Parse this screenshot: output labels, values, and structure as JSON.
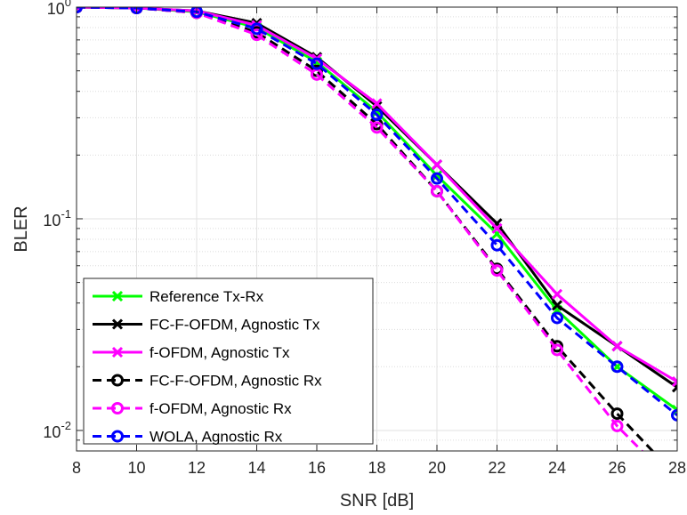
{
  "chart_data": {
    "type": "line",
    "xlabel": "SNR [dB]",
    "ylabel": "BLER",
    "xlim": [
      8,
      28
    ],
    "ylim": [
      0.008,
      1.0
    ],
    "yscale": "log",
    "grid": true,
    "legend_position": "bottom-left",
    "x_ticks": [
      8,
      10,
      12,
      14,
      16,
      18,
      20,
      22,
      24,
      26,
      28
    ],
    "x_tick_labels": [
      "8",
      "10",
      "12",
      "14",
      "16",
      "18",
      "20",
      "22",
      "24",
      "26",
      "28"
    ],
    "y_ticks": [
      {
        "value": 1,
        "base": "10",
        "exp": "0"
      },
      {
        "value": 0.1,
        "base": "10",
        "exp": "-1"
      },
      {
        "value": 0.01,
        "base": "10",
        "exp": "-2"
      }
    ],
    "series": [
      {
        "name": "Reference Tx-Rx",
        "color": "#00ff00",
        "dash": "solid",
        "marker": "x",
        "x": [
          8,
          10,
          12,
          14,
          16,
          18,
          20,
          22,
          24,
          26,
          28
        ],
        "values": [
          1.0,
          0.99,
          0.95,
          0.8,
          0.55,
          0.32,
          0.16,
          0.085,
          0.037,
          0.02,
          0.0125
        ]
      },
      {
        "name": "FC-F-OFDM, Agnostic Tx",
        "color": "#000000",
        "dash": "solid",
        "marker": "x",
        "x": [
          8,
          10,
          12,
          14,
          16,
          18,
          20,
          22,
          24,
          26,
          28
        ],
        "values": [
          1.0,
          0.99,
          0.96,
          0.84,
          0.58,
          0.34,
          0.18,
          0.095,
          0.039,
          0.025,
          0.016
        ]
      },
      {
        "name": "f-OFDM, Agnostic Tx",
        "color": "#ff00ff",
        "dash": "solid",
        "marker": "x",
        "x": [
          8,
          10,
          12,
          14,
          16,
          18,
          20,
          22,
          24,
          26,
          28
        ],
        "values": [
          1.0,
          0.99,
          0.96,
          0.82,
          0.57,
          0.35,
          0.18,
          0.09,
          0.044,
          0.025,
          0.017
        ]
      },
      {
        "name": "FC-F-OFDM, Agnostic Rx",
        "color": "#000000",
        "dash": "dashed",
        "marker": "o",
        "x": [
          8,
          10,
          12,
          14,
          16,
          18,
          20,
          22,
          24,
          26,
          27.25
        ],
        "values": [
          1.0,
          0.99,
          0.94,
          0.76,
          0.5,
          0.28,
          0.135,
          0.058,
          0.025,
          0.012,
          0.0078
        ]
      },
      {
        "name": "f-OFDM, Agnostic Rx",
        "color": "#ff00ff",
        "dash": "dashed",
        "marker": "o",
        "x": [
          8,
          10,
          12,
          14,
          16,
          18,
          20,
          22,
          24,
          26,
          26.9
        ],
        "values": [
          1.0,
          0.99,
          0.94,
          0.74,
          0.48,
          0.27,
          0.135,
          0.057,
          0.024,
          0.0105,
          0.0078
        ]
      },
      {
        "name": "WOLA, Agnostic Rx",
        "color": "#0000ff",
        "dash": "dashed",
        "marker": "o",
        "x": [
          8,
          10,
          12,
          14,
          16,
          18,
          20,
          22,
          24,
          26,
          28
        ],
        "values": [
          1.0,
          0.99,
          0.95,
          0.79,
          0.54,
          0.31,
          0.155,
          0.075,
          0.034,
          0.02,
          0.0118
        ]
      }
    ]
  }
}
